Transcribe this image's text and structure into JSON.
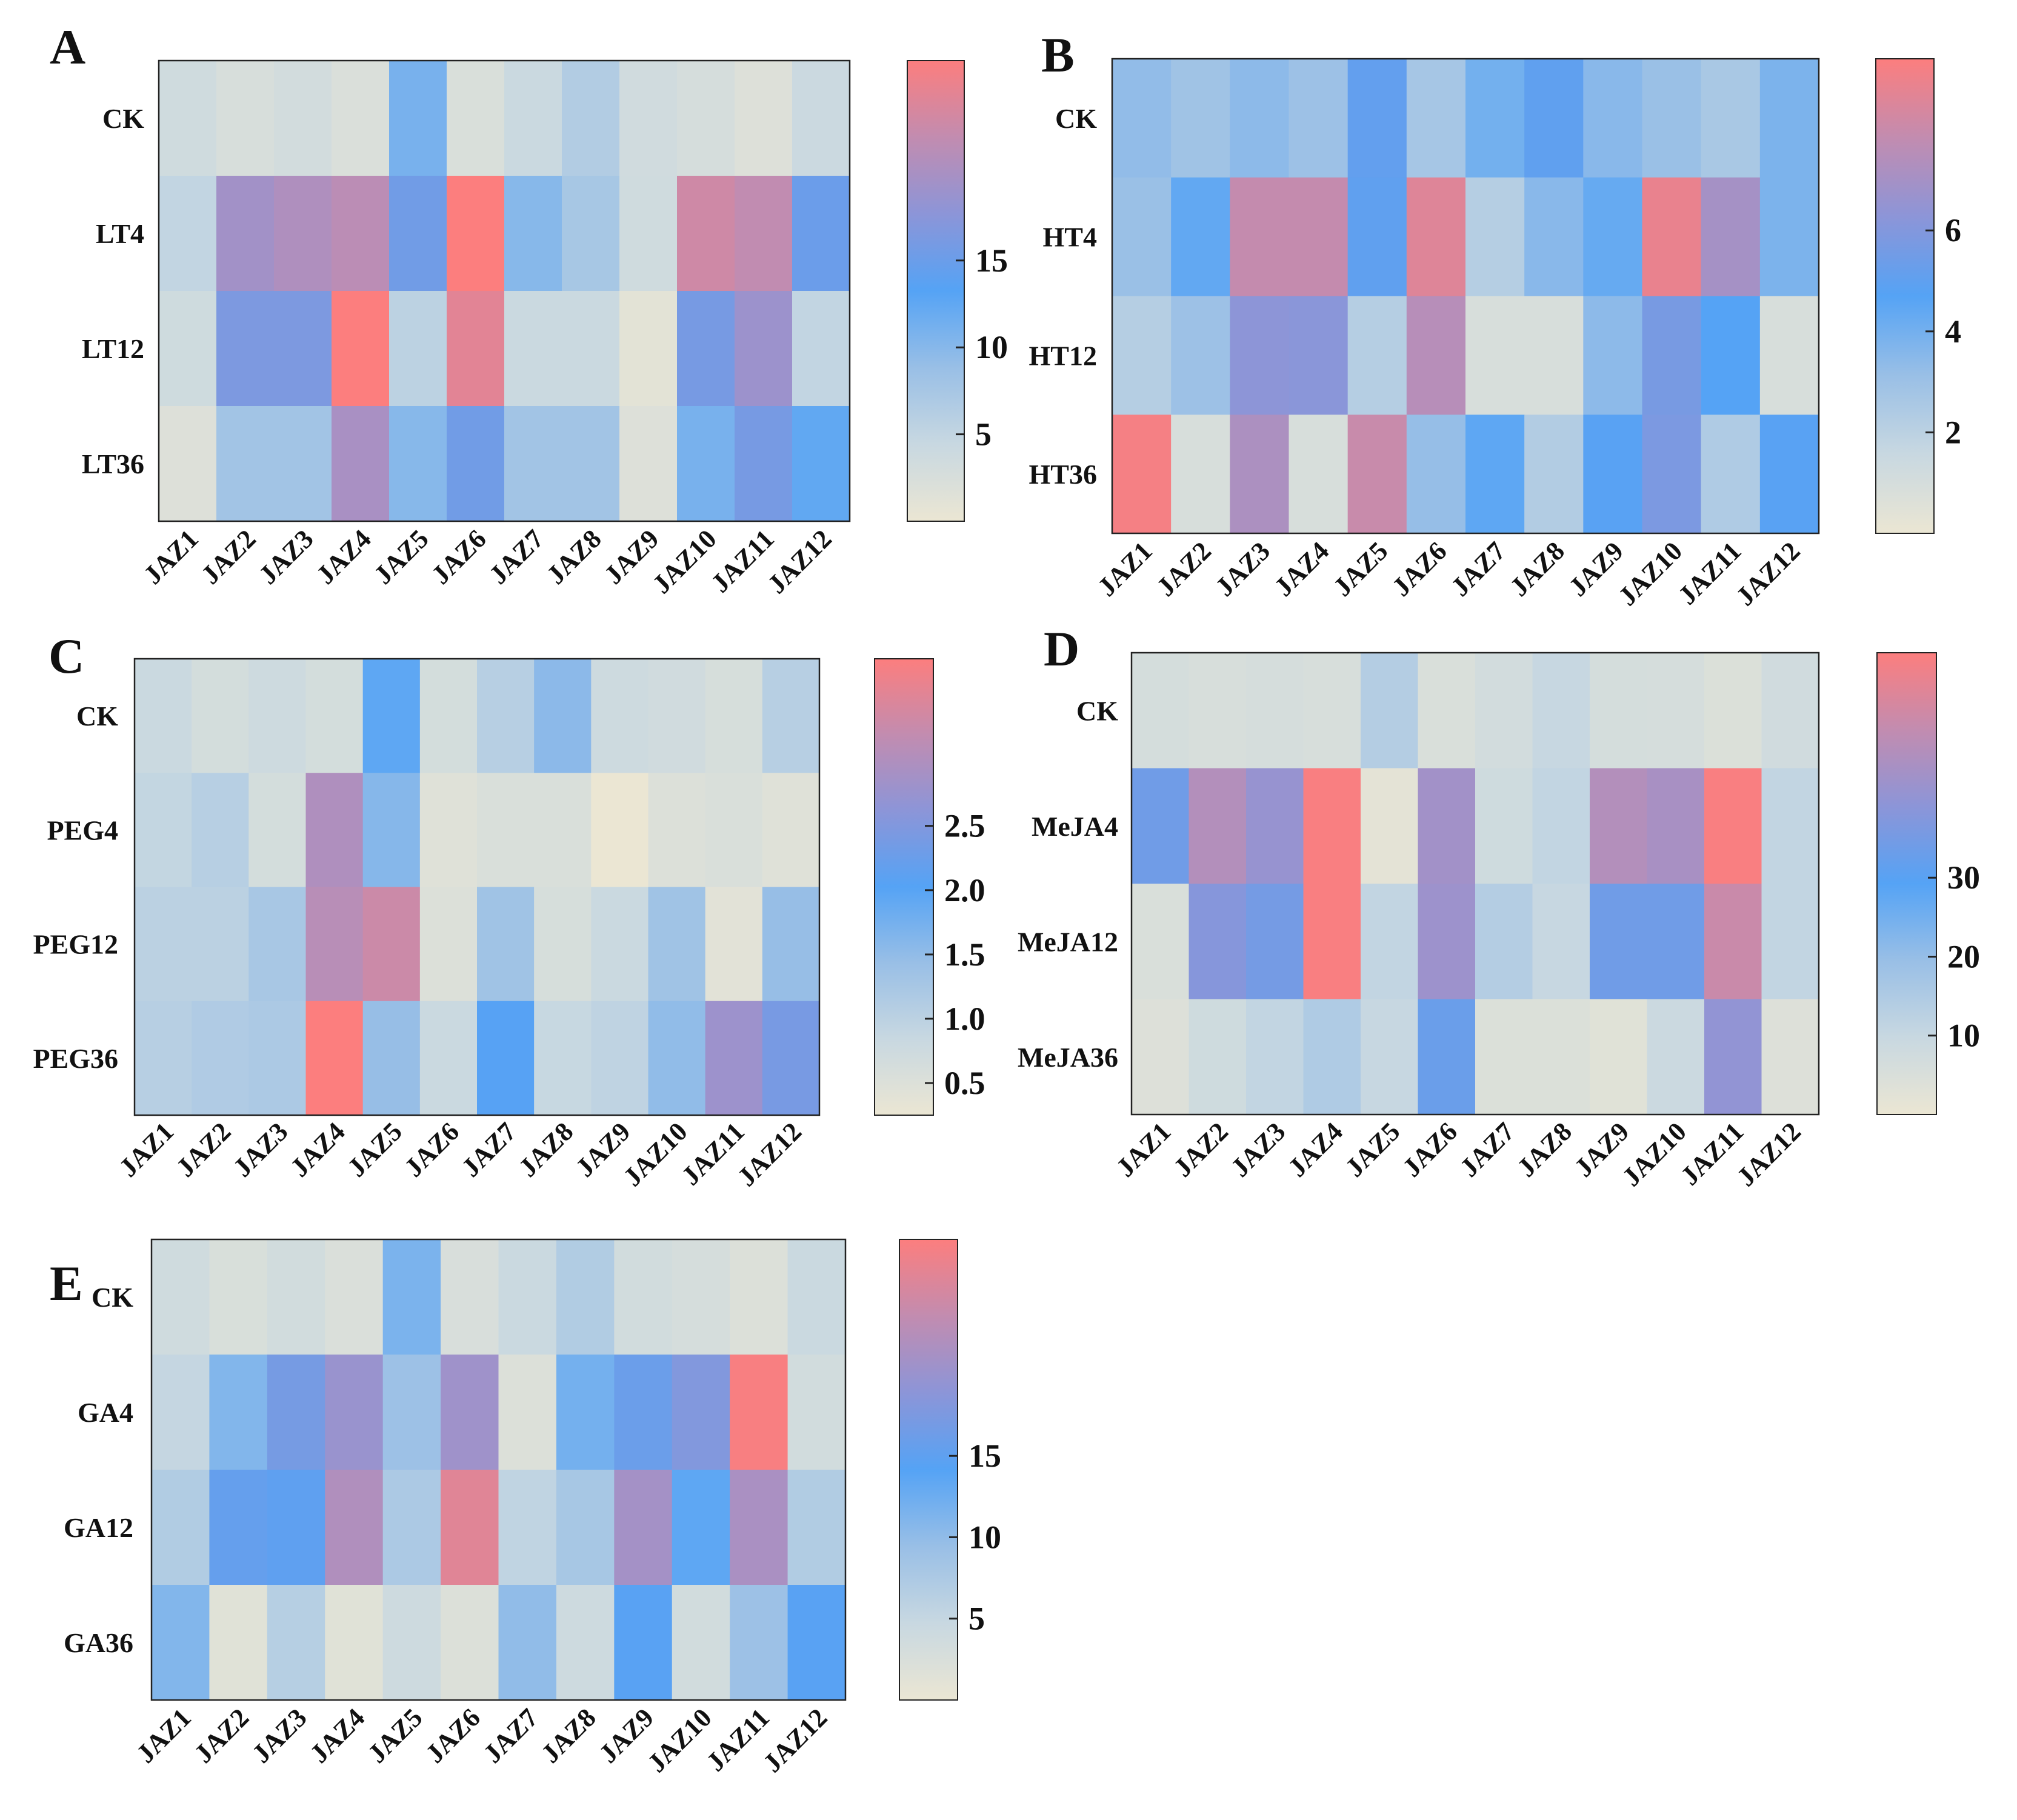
{
  "colorscale": {
    "stops": [
      "#ebe6d3",
      "#c8d8e1",
      "#99bfe6",
      "#55a3f5",
      "#8c95d8",
      "#c28cb0",
      "#fc7e7e"
    ],
    "type": "continuous"
  },
  "chart_data": [
    {
      "type": "heatmap",
      "panel": "A",
      "rows": [
        "CK",
        "LT4",
        "LT12",
        "LT36"
      ],
      "columns": [
        "JAZ1",
        "JAZ2",
        "JAZ3",
        "JAZ4",
        "JAZ5",
        "JAZ6",
        "JAZ7",
        "JAZ8",
        "JAZ9",
        "JAZ10",
        "JAZ11",
        "JAZ12"
      ],
      "values": [
        [
          3.5,
          2.5,
          3.2,
          2.2,
          11.0,
          2.3,
          4.2,
          6.5,
          3.4,
          2.8,
          1.8,
          4.0
        ],
        [
          5.0,
          19.5,
          20.5,
          21.5,
          15.5,
          26.5,
          10.0,
          7.5,
          3.5,
          23.0,
          22.0,
          15.0
        ],
        [
          3.6,
          16.5,
          16.5,
          26.5,
          5.5,
          24.5,
          4.2,
          4.2,
          1.0,
          16.0,
          19.0,
          5.0
        ],
        [
          1.8,
          8.0,
          8.0,
          20.0,
          10.0,
          15.5,
          8.0,
          8.0,
          1.8,
          11.0,
          16.0,
          12.5
        ]
      ],
      "colorbar": {
        "range": [
          0,
          26.5
        ],
        "ticks": [
          "5",
          "10",
          "15"
        ],
        "tick_values": [
          5,
          10,
          15
        ]
      }
    },
    {
      "type": "heatmap",
      "panel": "B",
      "rows": [
        "CK",
        "HT4",
        "HT12",
        "HT36"
      ],
      "columns": [
        "JAZ1",
        "JAZ2",
        "JAZ3",
        "JAZ4",
        "JAZ5",
        "JAZ6",
        "JAZ7",
        "JAZ8",
        "JAZ9",
        "JAZ10",
        "JAZ11",
        "JAZ12"
      ],
      "values": [
        [
          3.3,
          2.9,
          3.4,
          3.0,
          5.1,
          2.7,
          4.0,
          5.0,
          3.5,
          3.1,
          2.6,
          3.8
        ],
        [
          3.1,
          4.4,
          7.9,
          7.9,
          5.0,
          8.6,
          2.2,
          3.5,
          4.3,
          8.9,
          7.0,
          3.8
        ],
        [
          2.2,
          3.0,
          6.3,
          6.2,
          2.2,
          7.5,
          0.9,
          0.9,
          3.4,
          5.7,
          4.7,
          0.9
        ],
        [
          9.2,
          0.9,
          7.2,
          0.9,
          8.0,
          3.2,
          4.5,
          2.3,
          4.8,
          5.8,
          2.4,
          4.8
        ]
      ],
      "colorbar": {
        "range": [
          0,
          9.4
        ],
        "ticks": [
          "2",
          "4",
          "6"
        ],
        "tick_values": [
          2,
          4,
          6
        ]
      }
    },
    {
      "type": "heatmap",
      "panel": "C",
      "rows": [
        "CK",
        "PEG4",
        "PEG12",
        "PEG36"
      ],
      "columns": [
        "JAZ1",
        "JAZ2",
        "JAZ3",
        "JAZ4",
        "JAZ5",
        "JAZ6",
        "JAZ7",
        "JAZ8",
        "JAZ9",
        "JAZ10",
        "JAZ11",
        "JAZ12"
      ],
      "values": [
        [
          0.8,
          0.65,
          0.75,
          0.65,
          1.95,
          0.65,
          1.05,
          1.55,
          0.75,
          0.7,
          0.6,
          1.05
        ],
        [
          0.9,
          1.05,
          0.65,
          3.0,
          1.6,
          0.45,
          0.55,
          0.55,
          0.25,
          0.5,
          0.55,
          0.45
        ],
        [
          1.0,
          1.0,
          1.25,
          3.1,
          3.3,
          0.5,
          1.35,
          0.6,
          0.8,
          1.35,
          0.4,
          1.45
        ],
        [
          1.05,
          1.15,
          1.2,
          3.8,
          1.45,
          0.8,
          2.05,
          0.85,
          0.95,
          1.5,
          2.8,
          2.4
        ]
      ],
      "colorbar": {
        "range": [
          0.25,
          3.8
        ],
        "ticks": [
          "0.5",
          "1.0",
          "1.5",
          "2.0",
          "2.5"
        ],
        "tick_values": [
          0.5,
          1.0,
          1.5,
          2.0,
          2.5
        ]
      }
    },
    {
      "type": "heatmap",
      "panel": "D",
      "rows": [
        "CK",
        "MeJA4",
        "MeJA12",
        "MeJA36"
      ],
      "columns": [
        "JAZ1",
        "JAZ2",
        "JAZ3",
        "JAZ4",
        "JAZ5",
        "JAZ6",
        "JAZ7",
        "JAZ8",
        "JAZ9",
        "JAZ10",
        "JAZ11",
        "JAZ12"
      ],
      "values": [
        [
          6.5,
          5.5,
          6.0,
          5.5,
          14.0,
          5.0,
          7.0,
          10.0,
          6.5,
          6.0,
          4.5,
          7.5
        ],
        [
          34.0,
          46.0,
          41.0,
          58.0,
          2.0,
          43.0,
          8.0,
          11.0,
          46.0,
          44.0,
          58.0,
          11.0
        ],
        [
          5.0,
          38.0,
          35.0,
          58.0,
          11.0,
          42.0,
          14.0,
          10.0,
          34.0,
          34.0,
          50.0,
          11.0
        ],
        [
          4.0,
          8.0,
          11.0,
          15.0,
          10.0,
          33.0,
          4.5,
          4.5,
          3.0,
          9.0,
          40.0,
          4.0
        ]
      ],
      "colorbar": {
        "range": [
          0,
          58.5
        ],
        "ticks": [
          "10",
          "20",
          "30"
        ],
        "tick_values": [
          10,
          20,
          30
        ]
      }
    },
    {
      "type": "heatmap",
      "panel": "E",
      "rows": [
        "CK",
        "GA4",
        "GA12",
        "GA36"
      ],
      "columns": [
        "JAZ1",
        "JAZ2",
        "JAZ3",
        "JAZ4",
        "JAZ5",
        "JAZ6",
        "JAZ7",
        "JAZ8",
        "JAZ9",
        "JAZ10",
        "JAZ11",
        "JAZ12"
      ],
      "values": [
        [
          3.8,
          2.5,
          3.5,
          2.3,
          11.5,
          2.6,
          4.5,
          7.0,
          3.5,
          3.0,
          2.0,
          4.5
        ],
        [
          5.0,
          11.0,
          17.0,
          20.0,
          9.0,
          20.5,
          2.0,
          12.0,
          16.0,
          18.0,
          28.0,
          3.5
        ],
        [
          7.0,
          15.5,
          15.0,
          22.0,
          7.5,
          26.0,
          5.5,
          8.0,
          21.0,
          13.5,
          21.5,
          7.0
        ],
        [
          11.0,
          1.5,
          6.5,
          1.5,
          4.0,
          2.0,
          10.0,
          4.0,
          14.5,
          3.5,
          9.0,
          14.5
        ]
      ],
      "colorbar": {
        "range": [
          0,
          28.3
        ],
        "ticks": [
          "5",
          "10",
          "15"
        ],
        "tick_values": [
          5,
          10,
          15
        ]
      }
    }
  ]
}
